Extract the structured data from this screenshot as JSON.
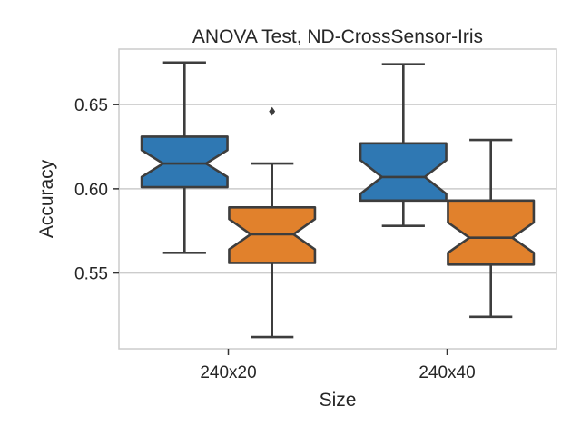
{
  "chart_data": {
    "type": "box",
    "title": "ANOVA Test, ND-CrossSensor-Iris",
    "xlabel": "Size",
    "ylabel": "Accuracy",
    "ylim": [
      0.505,
      0.683
    ],
    "yticks": [
      0.55,
      0.6,
      0.65
    ],
    "ytick_labels": [
      "0.55",
      "0.60",
      "0.65"
    ],
    "categories": [
      "240x20",
      "240x40"
    ],
    "grid": "horizontal",
    "notched": true,
    "series": [
      {
        "color": "#2f78b3",
        "boxes": [
          {
            "category": "240x20",
            "whisker_low": 0.562,
            "q1": 0.601,
            "median": 0.615,
            "q3": 0.631,
            "whisker_high": 0.675,
            "notch_low": 0.607,
            "notch_high": 0.623,
            "outliers": []
          },
          {
            "category": "240x40",
            "whisker_low": 0.578,
            "q1": 0.593,
            "median": 0.607,
            "q3": 0.627,
            "whisker_high": 0.674,
            "notch_low": 0.597,
            "notch_high": 0.617,
            "outliers": []
          }
        ]
      },
      {
        "color": "#e1812c",
        "boxes": [
          {
            "category": "240x20",
            "whisker_low": 0.512,
            "q1": 0.556,
            "median": 0.573,
            "q3": 0.589,
            "whisker_high": 0.615,
            "notch_low": 0.564,
            "notch_high": 0.582,
            "outliers": [
              0.646
            ]
          },
          {
            "category": "240x40",
            "whisker_low": 0.524,
            "q1": 0.555,
            "median": 0.571,
            "q3": 0.593,
            "whisker_high": 0.629,
            "notch_low": 0.562,
            "notch_high": 0.58,
            "outliers": []
          }
        ]
      }
    ]
  }
}
